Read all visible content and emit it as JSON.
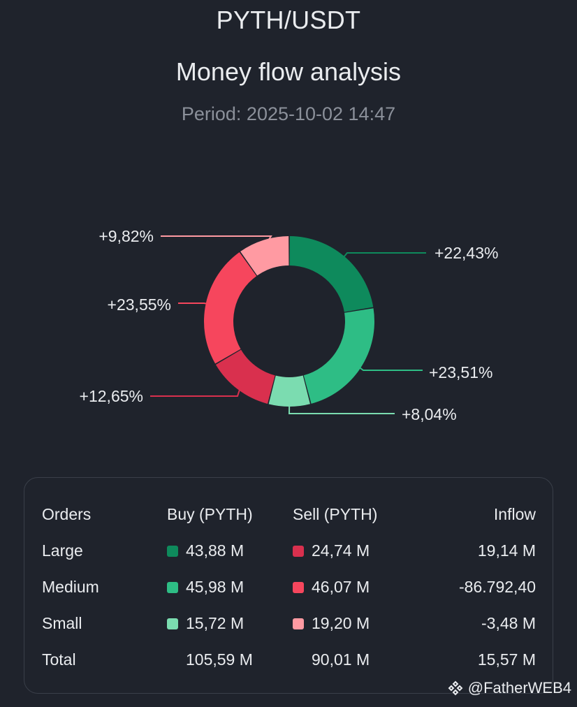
{
  "header": {
    "pair": "PYTH/USDT",
    "title": "Money flow analysis",
    "period": "Period: 2025-10-02 14:47"
  },
  "chart_data": {
    "type": "pie",
    "subtype": "donut",
    "title": "Money flow analysis",
    "slices": [
      {
        "name": "Large Buy",
        "value": 22.43,
        "label": "+22,43%",
        "color": "#0e8a5c"
      },
      {
        "name": "Medium Buy",
        "value": 23.51,
        "label": "+23,51%",
        "color": "#2ebd85"
      },
      {
        "name": "Small Buy",
        "value": 8.04,
        "label": "+8,04%",
        "color": "#7bdcb0"
      },
      {
        "name": "Large Sell",
        "value": 12.65,
        "label": "+12,65%",
        "color": "#d9304e"
      },
      {
        "name": "Medium Sell",
        "value": 23.55,
        "label": "+23,55%",
        "color": "#f6465d"
      },
      {
        "name": "Small Sell",
        "value": 9.82,
        "label": "+9,82%",
        "color": "#ff9aa2"
      }
    ]
  },
  "table": {
    "headers": {
      "orders": "Orders",
      "buy": "Buy (PYTH)",
      "sell": "Sell (PYTH)",
      "inflow": "Inflow"
    },
    "rows": [
      {
        "orders": "Large",
        "buy": "43,88 M",
        "sell": "24,74 M",
        "inflow": "19,14 M"
      },
      {
        "orders": "Medium",
        "buy": "45,98 M",
        "sell": "46,07 M",
        "inflow": "-86.792,40"
      },
      {
        "orders": "Small",
        "buy": "15,72 M",
        "sell": "19,20 M",
        "inflow": "-3,48 M"
      },
      {
        "orders": "Total",
        "buy": "105,59 M",
        "sell": "90,01 M",
        "inflow": "15,57 M"
      }
    ]
  },
  "watermark": {
    "text": "@FatherWEB4"
  }
}
